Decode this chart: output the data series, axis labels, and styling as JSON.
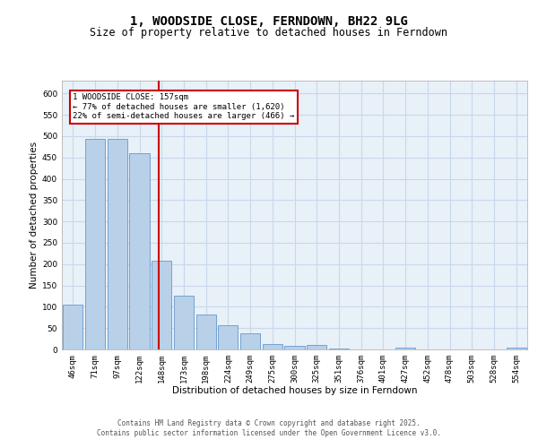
{
  "title": "1, WOODSIDE CLOSE, FERNDOWN, BH22 9LG",
  "subtitle": "Size of property relative to detached houses in Ferndown",
  "xlabel": "Distribution of detached houses by size in Ferndown",
  "ylabel": "Number of detached properties",
  "categories": [
    "46sqm",
    "71sqm",
    "97sqm",
    "122sqm",
    "148sqm",
    "173sqm",
    "198sqm",
    "224sqm",
    "249sqm",
    "275sqm",
    "300sqm",
    "325sqm",
    "351sqm",
    "376sqm",
    "401sqm",
    "427sqm",
    "452sqm",
    "478sqm",
    "503sqm",
    "528sqm",
    "554sqm"
  ],
  "values": [
    105,
    493,
    493,
    460,
    207,
    125,
    82,
    57,
    38,
    13,
    8,
    11,
    2,
    1,
    0,
    5,
    0,
    0,
    0,
    0,
    4
  ],
  "bar_color": "#b8d0e8",
  "bar_edge_color": "#6699cc",
  "grid_color": "#c8d8ea",
  "background_color": "#e8f0f8",
  "vline_color": "#cc0000",
  "annotation_text": "1 WOODSIDE CLOSE: 157sqm\n← 77% of detached houses are smaller (1,620)\n22% of semi-detached houses are larger (466) →",
  "annotation_box_color": "#cc0000",
  "footer_text": "Contains HM Land Registry data © Crown copyright and database right 2025.\nContains public sector information licensed under the Open Government Licence v3.0.",
  "ylim": [
    0,
    630
  ],
  "yticks": [
    0,
    50,
    100,
    150,
    200,
    250,
    300,
    350,
    400,
    450,
    500,
    550,
    600
  ],
  "title_fontsize": 10,
  "subtitle_fontsize": 8.5,
  "axis_label_fontsize": 7.5,
  "tick_fontsize": 6.5,
  "annotation_fontsize": 6.5,
  "footer_fontsize": 5.5
}
